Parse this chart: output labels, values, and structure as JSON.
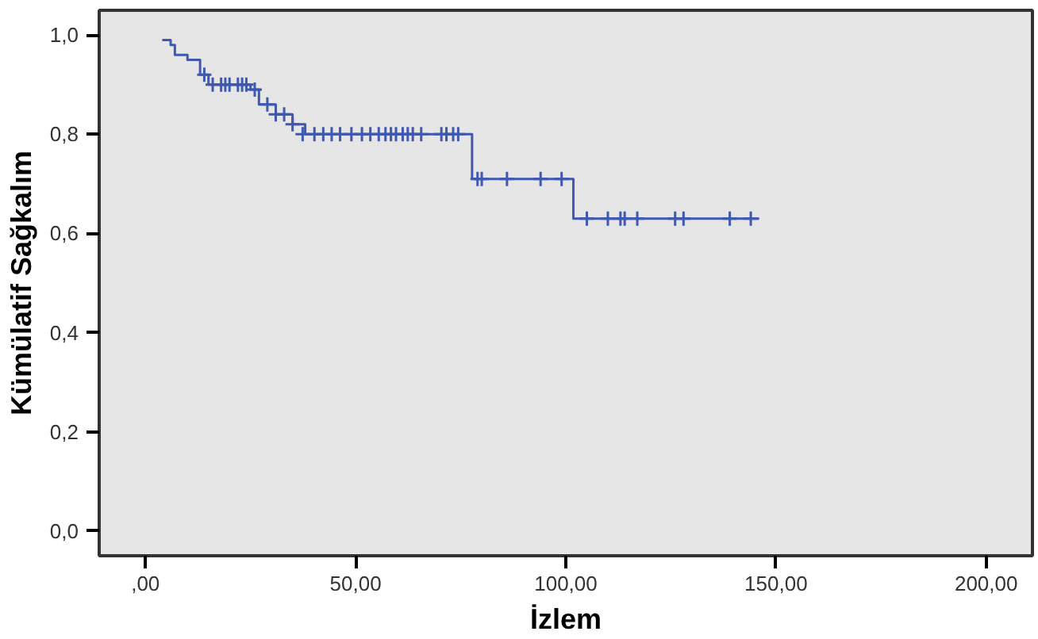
{
  "chart_data": {
    "type": "step",
    "xlabel": "İzlem",
    "ylabel": "Kümülatif Sağkalım",
    "xlim": [
      -11,
      211
    ],
    "ylim": [
      -0.05,
      1.05
    ],
    "xticks": [
      {
        "value": 0,
        "label": ",00"
      },
      {
        "value": 50,
        "label": "50,00"
      },
      {
        "value": 100,
        "label": "100,00"
      },
      {
        "value": 150,
        "label": "150,00"
      },
      {
        "value": 200,
        "label": "200,00"
      }
    ],
    "yticks": [
      {
        "value": 0,
        "label": "0,0"
      },
      {
        "value": 0.2,
        "label": "0,2"
      },
      {
        "value": 0.4,
        "label": "0,4"
      },
      {
        "value": 0.6,
        "label": "0,6"
      },
      {
        "value": 0.8,
        "label": "0,8"
      },
      {
        "value": 1.0,
        "label": "1,0"
      }
    ],
    "grid": false,
    "series": [
      {
        "color": "#3f58b0",
        "marker": "none",
        "x": [
          4,
          6,
          7,
          10,
          13,
          15,
          25,
          27,
          31,
          35,
          38,
          77.7,
          101.8,
          146
        ],
        "values": [
          0.99,
          0.98,
          0.96,
          0.95,
          0.92,
          0.9,
          0.89,
          0.86,
          0.84,
          0.82,
          0.8,
          0.71,
          0.63,
          0.63
        ]
      },
      {
        "type": "scatter",
        "color": "#3f58b0",
        "marker": "cross",
        "x": [
          14,
          16,
          18,
          19,
          20,
          22,
          23,
          24,
          26,
          29,
          31,
          33,
          35,
          37.4,
          40.2,
          42.3,
          44.3,
          46.3,
          49,
          51.5,
          53.5,
          55.5,
          57.1,
          58.4,
          59.6,
          61.2,
          62.4,
          63.6,
          65.6,
          70.4,
          71.6,
          73.2,
          74.4,
          79,
          80,
          86,
          94,
          99,
          105,
          110,
          113,
          114,
          117,
          126,
          128,
          139,
          144
        ],
        "values": [
          0.92,
          0.9,
          0.9,
          0.9,
          0.9,
          0.9,
          0.9,
          0.9,
          0.89,
          0.86,
          0.84,
          0.84,
          0.82,
          0.8,
          0.8,
          0.8,
          0.8,
          0.8,
          0.8,
          0.8,
          0.8,
          0.8,
          0.8,
          0.8,
          0.8,
          0.8,
          0.8,
          0.8,
          0.8,
          0.8,
          0.8,
          0.8,
          0.8,
          0.71,
          0.71,
          0.71,
          0.71,
          0.71,
          0.63,
          0.63,
          0.63,
          0.63,
          0.63,
          0.63,
          0.63,
          0.63,
          0.63
        ]
      }
    ]
  }
}
